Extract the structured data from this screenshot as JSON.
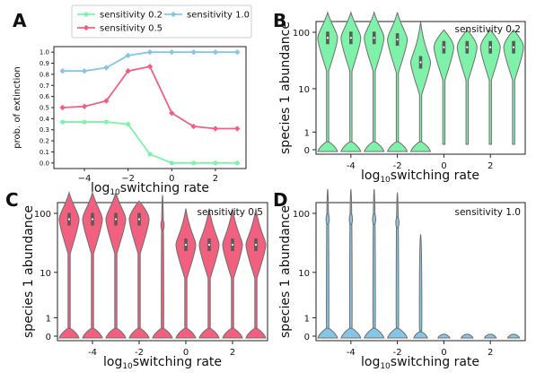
{
  "panel_letters": {
    "a": "A",
    "b": "B",
    "c": "C",
    "d": "D"
  },
  "colors": {
    "s02": "#7ff2aa",
    "s05": "#f2607f",
    "s10": "#85c6e6",
    "violin_edge": "#6e6e6e",
    "box": "#5a5a5a"
  },
  "chart_data": [
    {
      "panel": "A",
      "type": "line",
      "xlabel_main": "log",
      "xlabel_sub": "10",
      "xlabel_rest": "switching rate",
      "ylabel": "prob. of extinction",
      "xlim": [
        -5.4,
        3.4
      ],
      "ylim": [
        -0.05,
        1.05
      ],
      "xticks": [
        -4,
        -2,
        0,
        2
      ],
      "xtick_labels": [
        "−4",
        "−2",
        "0",
        "2"
      ],
      "yticks": [
        0.0,
        0.1,
        0.2,
        0.3,
        0.4,
        0.5,
        0.6,
        0.7,
        0.8,
        0.9,
        1.0
      ],
      "ytick_labels": [
        "0.0",
        "0.1",
        "0.2",
        "0.3",
        "0.4",
        "0.5",
        "0.6",
        "0.7",
        "0.8",
        "0.9",
        "1.0"
      ],
      "legend_position": "top",
      "x": [
        -5,
        -4,
        -3,
        -2,
        -1,
        0,
        1,
        2,
        3
      ],
      "series": [
        {
          "name": "sensitivity 0.2",
          "marker": "circle",
          "color": "#7ff2aa",
          "values": [
            0.37,
            0.37,
            0.37,
            0.35,
            0.08,
            0.0,
            0.0,
            0.0,
            0.0
          ]
        },
        {
          "name": "sensitivity 0.5",
          "marker": "diamond",
          "color": "#f2607f",
          "values": [
            0.5,
            0.51,
            0.56,
            0.83,
            0.87,
            0.45,
            0.33,
            0.31,
            0.31
          ]
        },
        {
          "name": "sensitivity 1.0",
          "marker": "diamond",
          "color": "#85c6e6",
          "values": [
            0.83,
            0.83,
            0.86,
            0.97,
            1.0,
            1.0,
            1.0,
            1.0,
            1.0
          ]
        }
      ]
    },
    {
      "panel": "B",
      "type": "violin",
      "annotation": "sensitivity 0.2",
      "color": "#7ff2aa",
      "xlabel_main": "log",
      "xlabel_sub": "10",
      "xlabel_rest": "switching rate",
      "ylabel": "species 1 abundance",
      "ytick_labels": [
        "0",
        "1",
        "10",
        "100"
      ],
      "xticks": [
        -4,
        -2,
        0,
        2
      ],
      "xtick_labels": [
        "-4",
        "-2",
        "0",
        "2"
      ],
      "x": [
        -5,
        -4,
        -3,
        -2,
        -1,
        0,
        1,
        2,
        3
      ],
      "violins": [
        {
          "x": -5,
          "median": 80,
          "max": 220,
          "extinction_bulb": true
        },
        {
          "x": -4,
          "median": 80,
          "max": 220,
          "extinction_bulb": true
        },
        {
          "x": -3,
          "median": 80,
          "max": 220,
          "extinction_bulb": true
        },
        {
          "x": -2,
          "median": 75,
          "max": 220,
          "extinction_bulb": true
        },
        {
          "x": -1,
          "median": 30,
          "max": 150,
          "extinction_bulb": true
        },
        {
          "x": 0,
          "median": 55,
          "max": 110,
          "extinction_bulb": false
        },
        {
          "x": 1,
          "median": 55,
          "max": 110,
          "extinction_bulb": false
        },
        {
          "x": 2,
          "median": 55,
          "max": 110,
          "extinction_bulb": false
        },
        {
          "x": 3,
          "median": 55,
          "max": 110,
          "extinction_bulb": false
        }
      ]
    },
    {
      "panel": "C",
      "type": "violin",
      "annotation": "sensitivity 0.5",
      "color": "#f2607f",
      "xlabel_main": "log",
      "xlabel_sub": "10",
      "xlabel_rest": "switching rate",
      "ylabel": "species 1 abundance",
      "ytick_labels": [
        "0",
        "1",
        "10",
        "100"
      ],
      "xticks": [
        -4,
        -2,
        0,
        2
      ],
      "xtick_labels": [
        "-4",
        "-2",
        "0",
        "2"
      ],
      "x": [
        -5,
        -4,
        -3,
        -2,
        -1,
        0,
        1,
        2,
        3
      ],
      "violins": [
        {
          "x": -5,
          "median": 80,
          "max": 220,
          "extinction_bulb": true
        },
        {
          "x": -4,
          "median": 80,
          "max": 220,
          "extinction_bulb": true
        },
        {
          "x": -3,
          "median": 80,
          "max": 220,
          "extinction_bulb": true
        },
        {
          "x": -2,
          "median": 80,
          "max": 160,
          "extinction_bulb": true
        },
        {
          "x": -1,
          "median": 0,
          "max": 200,
          "extinction_bulb": true
        },
        {
          "x": 0,
          "median": 30,
          "max": 120,
          "extinction_bulb": true
        },
        {
          "x": 1,
          "median": 30,
          "max": 120,
          "extinction_bulb": true
        },
        {
          "x": 2,
          "median": 30,
          "max": 120,
          "extinction_bulb": true
        },
        {
          "x": 3,
          "median": 30,
          "max": 120,
          "extinction_bulb": true
        }
      ]
    },
    {
      "panel": "D",
      "type": "violin",
      "annotation": "sensitivity 1.0",
      "color": "#85c6e6",
      "xlabel_main": "log",
      "xlabel_sub": "10",
      "xlabel_rest": "switching rate",
      "ylabel": "species 1 abundance",
      "ytick_labels": [
        "0",
        "1",
        "10",
        "100"
      ],
      "xticks": [
        -4,
        -2,
        0,
        2
      ],
      "xtick_labels": [
        "-4",
        "-2",
        "0",
        "2"
      ],
      "x": [
        -5,
        -4,
        -3,
        -2,
        -1,
        0,
        1,
        2,
        3
      ],
      "violins": [
        {
          "x": -5,
          "median": 0,
          "max": 250,
          "extinction_bulb": true
        },
        {
          "x": -4,
          "median": 0,
          "max": 250,
          "extinction_bulb": true
        },
        {
          "x": -3,
          "median": 0,
          "max": 250,
          "extinction_bulb": true
        },
        {
          "x": -2,
          "median": 0,
          "max": 220,
          "extinction_bulb": true
        },
        {
          "x": -1,
          "median": 0,
          "max": 45,
          "extinction_bulb": true
        },
        {
          "x": 0,
          "median": 0,
          "max": 0,
          "extinction_bulb": true
        },
        {
          "x": 1,
          "median": 0,
          "max": 0,
          "extinction_bulb": true
        },
        {
          "x": 2,
          "median": 0,
          "max": 0,
          "extinction_bulb": true
        },
        {
          "x": 3,
          "median": 0,
          "max": 0,
          "extinction_bulb": true
        }
      ]
    }
  ]
}
